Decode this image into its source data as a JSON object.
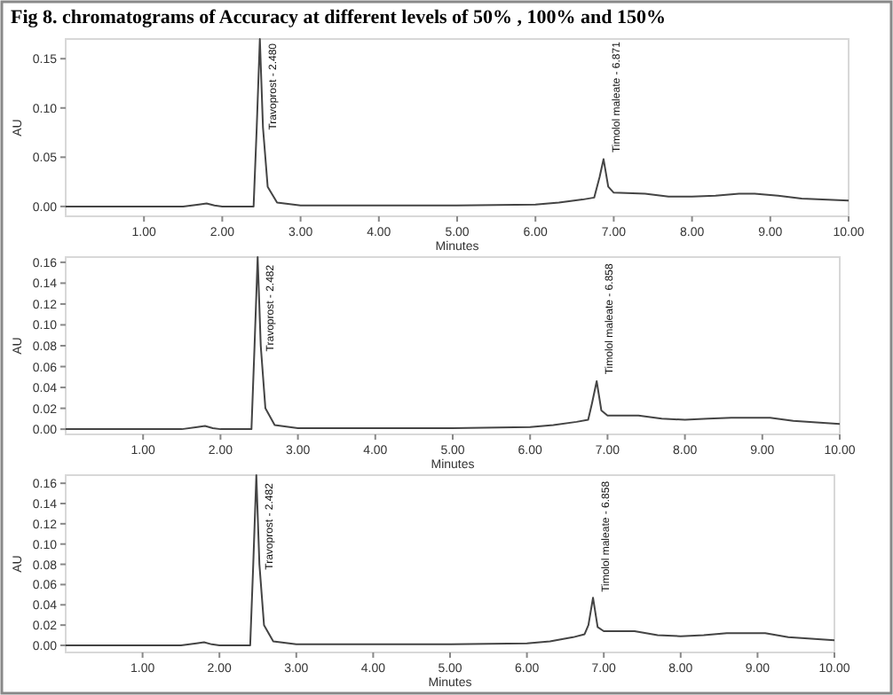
{
  "chart_data": [
    {
      "type": "line",
      "title": "Fig 8. chromatograms of Accuracy at different levels of 50% , 100% and 150%",
      "xlabel": "Minutes",
      "ylabel": "AU",
      "xlim": [
        0,
        10
      ],
      "ylim": [
        -0.01,
        0.17
      ],
      "xticks": [
        {
          "value": 1,
          "label": "1.00"
        },
        {
          "value": 2,
          "label": "2.00"
        },
        {
          "value": 3,
          "label": "3.00"
        },
        {
          "value": 4,
          "label": "4.00"
        },
        {
          "value": 5,
          "label": "5.00"
        },
        {
          "value": 6,
          "label": "6.00"
        },
        {
          "value": 7,
          "label": "7.00"
        },
        {
          "value": 8,
          "label": "8.00"
        },
        {
          "value": 9,
          "label": "9.00"
        },
        {
          "value": 10,
          "label": "10.00"
        }
      ],
      "yticks": [
        {
          "value": 0,
          "label": "0.00"
        },
        {
          "value": 0.05,
          "label": "0.05"
        },
        {
          "value": 0.1,
          "label": "0.10"
        },
        {
          "value": 0.15,
          "label": "0.15"
        }
      ],
      "x": [
        0,
        1.5,
        1.7,
        1.8,
        1.9,
        2.0,
        2.4,
        2.44,
        2.48,
        2.52,
        2.58,
        2.7,
        3,
        4,
        5,
        6,
        6.3,
        6.6,
        6.75,
        6.82,
        6.87,
        6.93,
        7.0,
        7.4,
        7.7,
        8.0,
        8.3,
        8.6,
        8.8,
        9.1,
        9.4,
        10
      ],
      "series": [
        {
          "color": "#444444",
          "values": [
            0,
            0,
            0.002,
            0.003,
            0.001,
            0,
            0,
            0.08,
            0.17,
            0.08,
            0.02,
            0.004,
            0.001,
            0.001,
            0.001,
            0.002,
            0.004,
            0.007,
            0.009,
            0.03,
            0.048,
            0.02,
            0.014,
            0.013,
            0.01,
            0.01,
            0.011,
            0.013,
            0.013,
            0.011,
            0.008,
            0.006
          ]
        }
      ],
      "annotations": [
        {
          "text": "Travoprost - 2.480",
          "x": 2.48,
          "y": 0.075
        },
        {
          "text": "Timolol maleate - 6.871",
          "x": 6.871,
          "y": 0.052
        }
      ]
    },
    {
      "type": "line",
      "xlabel": "Minutes",
      "ylabel": "AU",
      "xlim": [
        0,
        10
      ],
      "ylim": [
        -0.005,
        0.165
      ],
      "xticks": [
        {
          "value": 1,
          "label": "1.00"
        },
        {
          "value": 2,
          "label": "2.00"
        },
        {
          "value": 3,
          "label": "3.00"
        },
        {
          "value": 4,
          "label": "4.00"
        },
        {
          "value": 5,
          "label": "5.00"
        },
        {
          "value": 6,
          "label": "6.00"
        },
        {
          "value": 7,
          "label": "7.00"
        },
        {
          "value": 8,
          "label": "8.00"
        },
        {
          "value": 9,
          "label": "9.00"
        },
        {
          "value": 10,
          "label": "10.00"
        }
      ],
      "yticks": [
        {
          "value": 0,
          "label": "0.00"
        },
        {
          "value": 0.02,
          "label": "0.02"
        },
        {
          "value": 0.04,
          "label": "0.04"
        },
        {
          "value": 0.06,
          "label": "0.06"
        },
        {
          "value": 0.08,
          "label": "0.08"
        },
        {
          "value": 0.1,
          "label": "0.10"
        },
        {
          "value": 0.12,
          "label": "0.12"
        },
        {
          "value": 0.14,
          "label": "0.14"
        },
        {
          "value": 0.16,
          "label": "0.16"
        }
      ],
      "x": [
        0,
        1.5,
        1.7,
        1.8,
        1.9,
        2.0,
        2.4,
        2.44,
        2.48,
        2.52,
        2.58,
        2.7,
        3,
        4,
        5,
        6,
        6.3,
        6.6,
        6.75,
        6.8,
        6.86,
        6.92,
        7.0,
        7.4,
        7.7,
        8.0,
        8.3,
        8.6,
        8.8,
        9.1,
        9.4,
        10
      ],
      "series": [
        {
          "color": "#444444",
          "values": [
            0,
            0,
            0.002,
            0.003,
            0.001,
            0,
            0,
            0.08,
            0.165,
            0.08,
            0.02,
            0.004,
            0.001,
            0.001,
            0.001,
            0.002,
            0.004,
            0.007,
            0.009,
            0.025,
            0.046,
            0.018,
            0.013,
            0.013,
            0.01,
            0.009,
            0.01,
            0.011,
            0.011,
            0.011,
            0.008,
            0.005
          ]
        }
      ],
      "annotations": [
        {
          "text": "Travoprost - 2.482",
          "x": 2.482,
          "y": 0.072
        },
        {
          "text": "Timolol maleate - 6.858",
          "x": 6.858,
          "y": 0.05
        }
      ]
    },
    {
      "type": "line",
      "xlabel": "Minutes",
      "ylabel": "AU",
      "xlim": [
        0,
        10
      ],
      "ylim": [
        -0.007,
        0.168
      ],
      "xticks": [
        {
          "value": 1,
          "label": "1.00"
        },
        {
          "value": 2,
          "label": "2.00"
        },
        {
          "value": 3,
          "label": "3.00"
        },
        {
          "value": 4,
          "label": "4.00"
        },
        {
          "value": 5,
          "label": "5.00"
        },
        {
          "value": 6,
          "label": "6.00"
        },
        {
          "value": 7,
          "label": "7.00"
        },
        {
          "value": 8,
          "label": "8.00"
        },
        {
          "value": 9,
          "label": "9.00"
        },
        {
          "value": 10,
          "label": "10.00"
        }
      ],
      "yticks": [
        {
          "value": 0,
          "label": "0.00"
        },
        {
          "value": 0.02,
          "label": "0.02"
        },
        {
          "value": 0.04,
          "label": "0.04"
        },
        {
          "value": 0.06,
          "label": "0.06"
        },
        {
          "value": 0.08,
          "label": "0.08"
        },
        {
          "value": 0.1,
          "label": "0.10"
        },
        {
          "value": 0.12,
          "label": "0.12"
        },
        {
          "value": 0.14,
          "label": "0.14"
        },
        {
          "value": 0.16,
          "label": "0.16"
        }
      ],
      "x": [
        0,
        1.5,
        1.7,
        1.8,
        1.9,
        2.0,
        2.4,
        2.44,
        2.48,
        2.52,
        2.58,
        2.7,
        3,
        4,
        5,
        6,
        6.3,
        6.6,
        6.75,
        6.8,
        6.86,
        6.92,
        7.0,
        7.4,
        7.7,
        8.0,
        8.3,
        8.6,
        8.8,
        9.1,
        9.4,
        10
      ],
      "series": [
        {
          "color": "#444444",
          "values": [
            0,
            0,
            0.002,
            0.003,
            0.001,
            0,
            0,
            0.08,
            0.168,
            0.08,
            0.02,
            0.004,
            0.001,
            0.001,
            0.001,
            0.002,
            0.004,
            0.008,
            0.011,
            0.02,
            0.047,
            0.018,
            0.014,
            0.014,
            0.01,
            0.009,
            0.01,
            0.012,
            0.012,
            0.012,
            0.008,
            0.005
          ]
        }
      ],
      "annotations": [
        {
          "text": "Travoprost - 2.482",
          "x": 2.482,
          "y": 0.072
        },
        {
          "text": "Timolol maleate - 6.858",
          "x": 6.858,
          "y": 0.05
        }
      ]
    }
  ]
}
